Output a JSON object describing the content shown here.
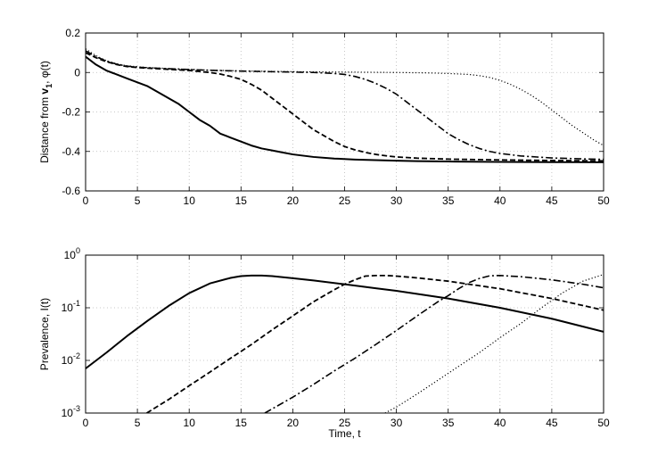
{
  "chart_data": [
    {
      "type": "line",
      "title": "",
      "xlabel": "",
      "ylabel": "Distance from v₁, φ(t)",
      "ylabel_parts": [
        "Distance from ",
        "v",
        "1",
        ", φ(t)"
      ],
      "xlim": [
        0,
        50
      ],
      "ylim": [
        -0.6,
        0.2
      ],
      "xticks": [
        0,
        5,
        10,
        15,
        20,
        25,
        30,
        35,
        40,
        45,
        50
      ],
      "xtick_labels": [
        "0",
        "5",
        "10",
        "15",
        "20",
        "25",
        "30",
        "35",
        "40",
        "45",
        "50"
      ],
      "yticks": [
        0.2,
        0,
        -0.2,
        -0.4,
        -0.6
      ],
      "ytick_labels": [
        "0.2",
        "0",
        "-0.2",
        "-0.4",
        "-0.6"
      ],
      "grid": true,
      "series": [
        {
          "style": "solid",
          "x": [
            0,
            1,
            2,
            3,
            4,
            5,
            6,
            7,
            8,
            9,
            10,
            11,
            12,
            13,
            14,
            15,
            16,
            17,
            18,
            19,
            20,
            22,
            24,
            26,
            28,
            30,
            32,
            35,
            40,
            45,
            50
          ],
          "y": [
            0.08,
            0.04,
            0.01,
            -0.01,
            -0.03,
            -0.05,
            -0.07,
            -0.1,
            -0.13,
            -0.16,
            -0.2,
            -0.24,
            -0.27,
            -0.31,
            -0.33,
            -0.35,
            -0.37,
            -0.385,
            -0.395,
            -0.405,
            -0.415,
            -0.428,
            -0.436,
            -0.441,
            -0.444,
            -0.447,
            -0.449,
            -0.451,
            -0.453,
            -0.454,
            -0.455
          ]
        },
        {
          "style": "dashed",
          "x": [
            0,
            1,
            2,
            3,
            4,
            5,
            6,
            8,
            10,
            12,
            13,
            14,
            15,
            16,
            17,
            18,
            19,
            20,
            21,
            22,
            23,
            24,
            25,
            26,
            27,
            28,
            29,
            30,
            32,
            35,
            40,
            45,
            50
          ],
          "y": [
            0.1,
            0.075,
            0.055,
            0.04,
            0.03,
            0.025,
            0.022,
            0.016,
            0.01,
            0.0,
            -0.008,
            -0.02,
            -0.035,
            -0.06,
            -0.09,
            -0.13,
            -0.17,
            -0.21,
            -0.25,
            -0.29,
            -0.32,
            -0.35,
            -0.375,
            -0.392,
            -0.405,
            -0.415,
            -0.422,
            -0.428,
            -0.434,
            -0.439,
            -0.443,
            -0.446,
            -0.448
          ]
        },
        {
          "style": "dashdot",
          "x": [
            0,
            1,
            2,
            3,
            4,
            5,
            6,
            8,
            10,
            12,
            15,
            18,
            20,
            22,
            24,
            25,
            26,
            27,
            28,
            29,
            30,
            31,
            32,
            33,
            34,
            35,
            36,
            37,
            38,
            39,
            40,
            42,
            45,
            48,
            50
          ],
          "y": [
            0.11,
            0.08,
            0.058,
            0.042,
            0.032,
            0.027,
            0.024,
            0.019,
            0.015,
            0.011,
            0.007,
            0.004,
            0.002,
            0.0,
            -0.005,
            -0.01,
            -0.02,
            -0.035,
            -0.055,
            -0.08,
            -0.11,
            -0.15,
            -0.19,
            -0.23,
            -0.27,
            -0.31,
            -0.34,
            -0.365,
            -0.385,
            -0.4,
            -0.41,
            -0.423,
            -0.433,
            -0.438,
            -0.44
          ]
        },
        {
          "style": "dotted",
          "x": [
            0,
            1,
            2,
            3,
            4,
            5,
            6,
            8,
            10,
            12,
            15,
            20,
            25,
            30,
            33,
            35,
            37,
            38,
            39,
            40,
            41,
            42,
            43,
            44,
            45,
            46,
            47,
            48,
            49,
            50
          ],
          "y": [
            0.12,
            0.085,
            0.06,
            0.044,
            0.034,
            0.029,
            0.025,
            0.02,
            0.016,
            0.012,
            0.008,
            0.004,
            0.002,
            0.0,
            -0.002,
            -0.005,
            -0.01,
            -0.016,
            -0.025,
            -0.04,
            -0.06,
            -0.085,
            -0.115,
            -0.15,
            -0.19,
            -0.23,
            -0.27,
            -0.305,
            -0.34,
            -0.37
          ]
        }
      ]
    },
    {
      "type": "line",
      "title": "",
      "xlabel": "Time, t",
      "ylabel": "Prevalence, I(t)",
      "yscale": "log",
      "xlim": [
        0,
        50
      ],
      "ylim": [
        0.001,
        1
      ],
      "xticks": [
        0,
        5,
        10,
        15,
        20,
        25,
        30,
        35,
        40,
        45,
        50
      ],
      "xtick_labels": [
        "0",
        "5",
        "10",
        "15",
        "20",
        "25",
        "30",
        "35",
        "40",
        "45",
        "50"
      ],
      "yticks": [
        1,
        0.1,
        0.01,
        0.001
      ],
      "ytick_labels": [
        {
          "base": "10",
          "exp": "0"
        },
        {
          "base": "10",
          "exp": "-1"
        },
        {
          "base": "10",
          "exp": "-2"
        },
        {
          "base": "10",
          "exp": "-3"
        }
      ],
      "grid": true,
      "series": [
        {
          "style": "solid",
          "x": [
            0,
            2,
            4,
            6,
            8,
            10,
            12,
            14,
            15,
            16,
            17,
            18,
            20,
            22,
            25,
            28,
            30,
            35,
            40,
            45,
            50
          ],
          "y": [
            0.007,
            0.014,
            0.029,
            0.057,
            0.108,
            0.19,
            0.29,
            0.37,
            0.4,
            0.41,
            0.41,
            0.4,
            0.365,
            0.33,
            0.28,
            0.235,
            0.21,
            0.15,
            0.1,
            0.062,
            0.035
          ]
        },
        {
          "style": "dashed",
          "x": [
            5.9,
            8,
            10,
            12,
            14,
            16,
            18,
            20,
            22,
            24,
            25,
            26,
            27,
            28,
            29,
            30,
            32,
            35,
            40,
            45,
            50
          ],
          "y": [
            0.001,
            0.0018,
            0.0033,
            0.006,
            0.011,
            0.02,
            0.038,
            0.07,
            0.13,
            0.22,
            0.28,
            0.34,
            0.4,
            0.41,
            0.41,
            0.4,
            0.37,
            0.32,
            0.23,
            0.15,
            0.09
          ]
        },
        {
          "style": "dashdot",
          "x": [
            17.3,
            20,
            22,
            24,
            26,
            28,
            30,
            32,
            34,
            35,
            36,
            37,
            38,
            39,
            40,
            42,
            45,
            48,
            50
          ],
          "y": [
            0.001,
            0.002,
            0.0035,
            0.0063,
            0.011,
            0.02,
            0.037,
            0.07,
            0.13,
            0.17,
            0.23,
            0.3,
            0.36,
            0.405,
            0.41,
            0.39,
            0.34,
            0.28,
            0.24
          ]
        },
        {
          "style": "dotted",
          "x": [
            28.9,
            30,
            32,
            34,
            36,
            38,
            40,
            42,
            44,
            46,
            48,
            50
          ],
          "y": [
            0.001,
            0.0013,
            0.0023,
            0.0042,
            0.0077,
            0.014,
            0.027,
            0.05,
            0.1,
            0.19,
            0.32,
            0.43
          ]
        }
      ]
    }
  ]
}
